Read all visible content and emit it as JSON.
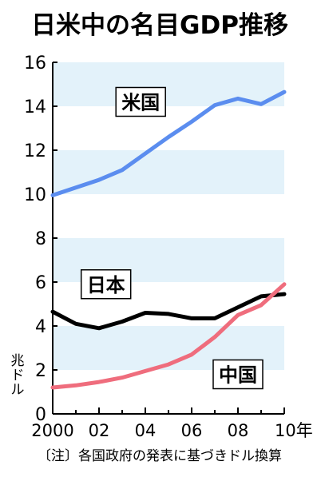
{
  "chart_data": {
    "type": "line",
    "title": "日米中の名目GDP推移",
    "ylabel": "兆ドル",
    "note": "〔注〕各国政府の発表に基づきドル換算",
    "ylim": [
      0,
      16
    ],
    "yticks": [
      "0",
      "2",
      "4",
      "6",
      "8",
      "10",
      "12",
      "14",
      "16"
    ],
    "xlim": [
      2000,
      2010
    ],
    "xticks": [
      {
        "value": 2000,
        "label": "2000"
      },
      {
        "value": 2002,
        "label": "02"
      },
      {
        "value": 2004,
        "label": "04"
      },
      {
        "value": 2006,
        "label": "06"
      },
      {
        "value": 2008,
        "label": "08"
      },
      {
        "value": 2010,
        "label": "10年"
      }
    ],
    "grid_bands": true,
    "series": [
      {
        "name": "米国",
        "color": "#5b8def",
        "x": [
          2000,
          2001,
          2002,
          2003,
          2004,
          2005,
          2006,
          2007,
          2008,
          2009,
          2010
        ],
        "values": [
          9.95,
          10.3,
          10.65,
          11.1,
          11.85,
          12.6,
          13.3,
          14.05,
          14.35,
          14.1,
          14.65
        ]
      },
      {
        "name": "日本",
        "color": "#000000",
        "x": [
          2000,
          2001,
          2002,
          2003,
          2004,
          2005,
          2006,
          2007,
          2008,
          2009,
          2010
        ],
        "values": [
          4.65,
          4.1,
          3.9,
          4.2,
          4.6,
          4.55,
          4.35,
          4.35,
          4.85,
          5.35,
          5.45
        ]
      },
      {
        "name": "中国",
        "color": "#ef6d7d",
        "x": [
          2000,
          2001,
          2002,
          2003,
          2004,
          2005,
          2006,
          2007,
          2008,
          2009,
          2010
        ],
        "values": [
          1.2,
          1.3,
          1.45,
          1.65,
          1.95,
          2.25,
          2.7,
          3.5,
          4.5,
          4.95,
          5.9
        ]
      }
    ]
  }
}
